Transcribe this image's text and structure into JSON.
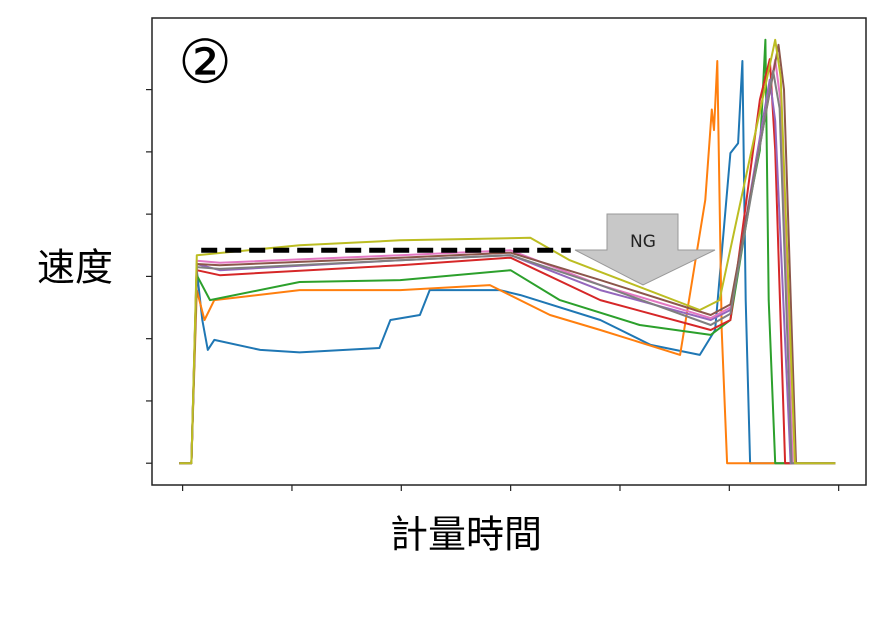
{
  "chart_data": {
    "type": "line",
    "panel_label": "②",
    "y_label": "速度",
    "x_label": "計量時間",
    "annotation": "NG",
    "xlim": [
      -0.28,
      6.25
    ],
    "ylim": [
      -0.35,
      7.15
    ],
    "xticks": [
      0,
      1,
      2,
      3,
      4,
      5,
      6
    ],
    "yticks": [
      0,
      1,
      2,
      3,
      4,
      5,
      6
    ],
    "reference_line": {
      "y": 3.42,
      "x": [
        0.17,
        3.55
      ],
      "color": "#000000"
    },
    "series": [
      {
        "color": "#1f77b4",
        "x": [
          -0.03,
          0.08,
          0.13,
          0.18,
          0.23,
          0.29,
          0.71,
          1.07,
          1.8,
          1.9,
          2.17,
          2.26,
          2.9,
          3.09,
          3.82,
          4.28,
          4.73,
          4.87,
          5.01,
          5.08,
          5.12,
          5.15,
          5.19,
          5.97
        ],
        "values": [
          0,
          0,
          3.1,
          2.3,
          1.82,
          1.98,
          1.82,
          1.78,
          1.85,
          2.3,
          2.38,
          2.78,
          2.78,
          2.7,
          2.3,
          1.9,
          1.74,
          2.14,
          4.98,
          5.14,
          6.46,
          2.62,
          0,
          0
        ]
      },
      {
        "color": "#ff7f0e",
        "x": [
          -0.03,
          0.08,
          0.13,
          0.2,
          0.29,
          1.07,
          1.99,
          2.81,
          3.36,
          3.82,
          4.55,
          4.78,
          4.84,
          4.86,
          4.89,
          4.93,
          4.98,
          5.97
        ],
        "values": [
          0,
          0,
          2.78,
          2.3,
          2.62,
          2.78,
          2.78,
          2.86,
          2.38,
          2.14,
          1.74,
          4.23,
          5.68,
          5.35,
          6.46,
          2.14,
          0,
          0
        ]
      },
      {
        "color": "#2ca02c",
        "x": [
          -0.03,
          0.08,
          0.13,
          0.25,
          1.07,
          1.99,
          3.0,
          3.45,
          4.18,
          4.83,
          5.01,
          5.19,
          5.28,
          5.33,
          5.36,
          5.42,
          5.97
        ],
        "values": [
          0,
          0,
          3.02,
          2.62,
          2.91,
          2.94,
          3.1,
          2.62,
          2.22,
          2.06,
          2.3,
          4.23,
          5.03,
          6.8,
          2.62,
          0,
          0
        ]
      },
      {
        "color": "#d62728",
        "x": [
          -0.03,
          0.08,
          0.13,
          0.34,
          1.99,
          3.0,
          3.82,
          4.83,
          5.01,
          5.28,
          5.37,
          5.42,
          5.51,
          5.97
        ],
        "values": [
          0,
          0,
          3.1,
          3.02,
          3.18,
          3.3,
          2.62,
          2.14,
          2.3,
          5.84,
          6.49,
          5.03,
          0,
          0
        ]
      },
      {
        "color": "#9467bd",
        "x": [
          -0.03,
          0.08,
          0.13,
          0.34,
          1.99,
          3.0,
          3.82,
          4.83,
          5.01,
          5.37,
          5.42,
          5.56,
          5.97
        ],
        "values": [
          0,
          0,
          3.2,
          3.1,
          3.26,
          3.34,
          2.78,
          2.3,
          2.46,
          6.16,
          5.5,
          0,
          0
        ]
      },
      {
        "color": "#e377c2",
        "x": [
          -0.03,
          0.08,
          0.13,
          0.34,
          1.99,
          3.0,
          3.82,
          4.83,
          5.01,
          5.42,
          5.47,
          5.58,
          5.97
        ],
        "values": [
          0,
          0,
          3.25,
          3.22,
          3.34,
          3.42,
          2.86,
          2.33,
          2.5,
          6.48,
          5.8,
          0,
          0
        ]
      },
      {
        "color": "#8c564b",
        "x": [
          -0.03,
          0.08,
          0.13,
          0.34,
          1.99,
          3.0,
          3.82,
          4.83,
          5.01,
          5.45,
          5.5,
          5.61,
          5.97
        ],
        "values": [
          0,
          0,
          3.2,
          3.18,
          3.3,
          3.38,
          2.94,
          2.38,
          2.55,
          6.72,
          6.0,
          0,
          0
        ]
      },
      {
        "color": "#7f7f7f",
        "x": [
          -0.03,
          0.08,
          0.13,
          0.34,
          1.99,
          3.0,
          3.82,
          4.83,
          5.01,
          5.4,
          5.46,
          5.57,
          5.97
        ],
        "values": [
          0,
          0,
          3.15,
          3.12,
          3.26,
          3.34,
          2.86,
          2.22,
          2.4,
          6.3,
          5.7,
          0,
          0
        ]
      },
      {
        "color": "#bcbd22",
        "x": [
          -0.03,
          0.08,
          0.13,
          1.07,
          1.99,
          3.18,
          3.54,
          4.73,
          4.91,
          5.42,
          5.47,
          5.6,
          5.97
        ],
        "values": [
          0,
          0,
          3.34,
          3.5,
          3.58,
          3.62,
          3.26,
          2.46,
          2.62,
          6.8,
          6.2,
          0,
          0
        ]
      }
    ]
  }
}
